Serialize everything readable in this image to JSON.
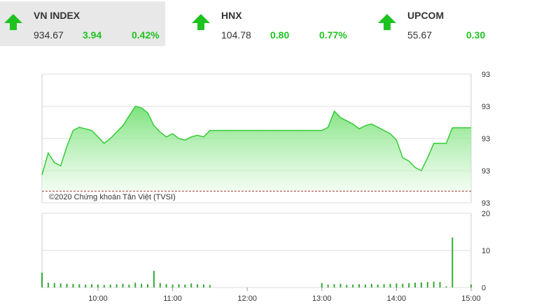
{
  "tickers": [
    {
      "name": "VN INDEX",
      "price": "934.67",
      "change": "3.94",
      "percent": "0.42%"
    },
    {
      "name": "HNX",
      "price": "104.78",
      "change": "0.80",
      "percent": "0.77%"
    },
    {
      "name": "UPCOM",
      "price": "55.67",
      "change": "0.30"
    }
  ],
  "chart_data": [
    {
      "type": "area",
      "watermark": "©2020 Chứng khoán Tân Việt (TVSI)",
      "color": "#33cc33",
      "reference_line": 930.73,
      "x": [
        "09:15",
        "09:20",
        "09:25",
        "09:30",
        "09:35",
        "09:40",
        "09:45",
        "09:50",
        "09:55",
        "10:00",
        "10:05",
        "10:10",
        "10:15",
        "10:20",
        "10:25",
        "10:30",
        "10:35",
        "10:40",
        "10:45",
        "10:50",
        "10:55",
        "11:00",
        "11:05",
        "11:10",
        "11:15",
        "11:20",
        "11:25",
        "11:30",
        "13:00",
        "13:05",
        "13:10",
        "13:15",
        "13:20",
        "13:25",
        "13:30",
        "13:35",
        "13:40",
        "13:45",
        "13:50",
        "13:55",
        "14:00",
        "14:05",
        "14:10",
        "14:15",
        "14:20",
        "14:25",
        "14:30",
        "14:35",
        "14:40",
        "14:45",
        "15:00"
      ],
      "values": [
        931.74,
        933.1,
        932.5,
        932.3,
        933.5,
        934.5,
        934.7,
        934.6,
        934.5,
        934.1,
        933.7,
        934.0,
        934.4,
        934.8,
        935.4,
        936.0,
        935.9,
        935.6,
        934.8,
        934.4,
        934.1,
        934.3,
        934.0,
        933.9,
        934.1,
        934.2,
        934.1,
        934.5,
        934.5,
        934.7,
        935.7,
        935.3,
        935.1,
        934.9,
        934.6,
        934.8,
        934.9,
        934.7,
        934.5,
        934.3,
        933.9,
        932.8,
        932.6,
        932.2,
        932.0,
        932.8,
        933.7,
        933.7,
        933.7,
        934.67,
        934.67
      ],
      "xlim": [
        "09:15",
        "15:00"
      ],
      "ylim": [
        930,
        938
      ],
      "yticks": [
        {
          "value": 938,
          "label": "93"
        },
        {
          "value": 936,
          "label": "93"
        },
        {
          "value": 934,
          "label": "93"
        },
        {
          "value": 932,
          "label": "93"
        },
        {
          "value": 930,
          "label": "93"
        }
      ],
      "grid": true
    },
    {
      "type": "bar",
      "color": "#33aa33",
      "x": [
        "09:15",
        "09:20",
        "09:25",
        "09:30",
        "09:35",
        "09:40",
        "09:45",
        "09:50",
        "09:55",
        "10:00",
        "10:05",
        "10:10",
        "10:15",
        "10:20",
        "10:25",
        "10:30",
        "10:35",
        "10:40",
        "10:45",
        "10:50",
        "10:55",
        "11:00",
        "11:05",
        "11:10",
        "11:15",
        "11:20",
        "11:25",
        "11:30",
        "13:00",
        "13:05",
        "13:10",
        "13:15",
        "13:20",
        "13:25",
        "13:30",
        "13:35",
        "13:40",
        "13:45",
        "13:50",
        "13:55",
        "14:00",
        "14:05",
        "14:10",
        "14:15",
        "14:20",
        "14:25",
        "14:30",
        "14:35",
        "14:40",
        "14:45",
        "15:00"
      ],
      "values": [
        4,
        1.3,
        1.2,
        1.1,
        1,
        1,
        0.9,
        0.8,
        0.9,
        0.8,
        0.7,
        0.8,
        0.9,
        1,
        0.8,
        1.3,
        1,
        0.9,
        4.5,
        1.2,
        0.9,
        0.8,
        0.9,
        0.8,
        1.1,
        0.9,
        0.8,
        0.7,
        1.2,
        0.8,
        0.9,
        1,
        0.7,
        0.8,
        0.9,
        0.8,
        1,
        0.8,
        0.9,
        1,
        1.1,
        1,
        1.2,
        1.3,
        1.4,
        1.5,
        1.6,
        1.5,
        0.3,
        13.5,
        0.8
      ],
      "xlim": [
        "09:15",
        "15:00"
      ],
      "ylim": [
        0,
        20
      ],
      "yticks": [
        20,
        10,
        0
      ],
      "xticks": [
        "10:00",
        "11:00",
        "12:00",
        "13:00",
        "14:00",
        "15:00"
      ],
      "grid": true
    }
  ]
}
